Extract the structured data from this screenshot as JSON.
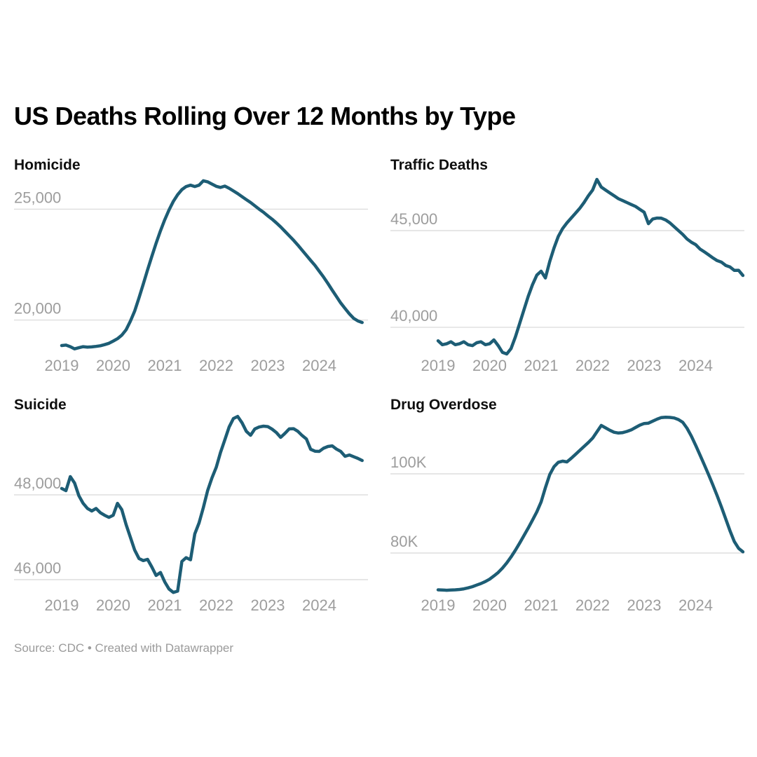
{
  "page": {
    "title": "US Deaths Rolling Over 12 Months by Type",
    "source_note": "Source: CDC • Created with Datawrapper",
    "background_color": "#ffffff",
    "line_color": "#1d5d75",
    "grid_color": "#dddddd",
    "axis_label_color": "#9d9d9d",
    "title_color": "#000000"
  },
  "chart_data": [
    {
      "type": "line",
      "title": "Homicide",
      "x_start_year": 2019,
      "points_per_year": 12,
      "x_tick_labels": [
        "2019",
        "2020",
        "2021",
        "2022",
        "2023",
        "2024"
      ],
      "y_gridlines": [
        {
          "value": 25000,
          "label": "25,000"
        },
        {
          "value": 20000,
          "label": "20,000"
        }
      ],
      "ylim": [
        18470,
        26560
      ],
      "grid": true,
      "legend": "none",
      "values": [
        18850,
        18870,
        18800,
        18700,
        18750,
        18800,
        18780,
        18790,
        18810,
        18840,
        18890,
        18950,
        19050,
        19160,
        19320,
        19560,
        19950,
        20400,
        21000,
        21620,
        22260,
        22870,
        23460,
        24020,
        24520,
        24960,
        25350,
        25650,
        25880,
        26020,
        26080,
        26020,
        26080,
        26280,
        26230,
        26130,
        26030,
        25980,
        26040,
        25940,
        25820,
        25700,
        25560,
        25430,
        25300,
        25150,
        25000,
        24860,
        24700,
        24550,
        24380,
        24200,
        24000,
        23800,
        23600,
        23380,
        23150,
        22920,
        22690,
        22460,
        22200,
        21940,
        21650,
        21350,
        21060,
        20770,
        20520,
        20280,
        20080,
        19960,
        19890
      ]
    },
    {
      "type": "line",
      "title": "Traffic Deaths",
      "x_start_year": 2019,
      "points_per_year": 12,
      "x_tick_labels": [
        "2019",
        "2020",
        "2021",
        "2022",
        "2023",
        "2024"
      ],
      "y_gridlines": [
        {
          "value": 45000,
          "label": "45,000"
        },
        {
          "value": 40000,
          "label": "40,000"
        }
      ],
      "ylim": [
        38620,
        47900
      ],
      "grid": true,
      "legend": "none",
      "values": [
        39300,
        39100,
        39150,
        39250,
        39100,
        39150,
        39250,
        39100,
        39050,
        39200,
        39250,
        39100,
        39150,
        39350,
        39050,
        38700,
        38620,
        38900,
        39500,
        40200,
        40900,
        41600,
        42200,
        42700,
        42900,
        42550,
        43400,
        44100,
        44700,
        45100,
        45400,
        45650,
        45900,
        46150,
        46450,
        46800,
        47100,
        47645,
        47250,
        47100,
        46950,
        46800,
        46650,
        46550,
        46450,
        46350,
        46250,
        46100,
        45950,
        45360,
        45600,
        45650,
        45640,
        45550,
        45400,
        45200,
        45000,
        44800,
        44565,
        44400,
        44275,
        44050,
        43900,
        43750,
        43590,
        43450,
        43370,
        43200,
        43120,
        42940,
        42950,
        42680
      ]
    },
    {
      "type": "line",
      "title": "Suicide",
      "x_start_year": 2019,
      "points_per_year": 12,
      "x_tick_labels": [
        "2019",
        "2020",
        "2021",
        "2022",
        "2023",
        "2024"
      ],
      "y_gridlines": [
        {
          "value": 48000,
          "label": "48,000"
        },
        {
          "value": 46000,
          "label": "46,000"
        }
      ],
      "ylim": [
        45670,
        49901
      ],
      "grid": true,
      "legend": "none",
      "values": [
        48150,
        48100,
        48430,
        48280,
        47980,
        47800,
        47680,
        47620,
        47680,
        47580,
        47520,
        47470,
        47520,
        47800,
        47650,
        47300,
        47000,
        46700,
        46500,
        46450,
        46480,
        46300,
        46100,
        46170,
        45950,
        45780,
        45700,
        45730,
        46430,
        46520,
        46470,
        47080,
        47340,
        47700,
        48100,
        48400,
        48650,
        49000,
        49300,
        49600,
        49800,
        49850,
        49700,
        49500,
        49405,
        49555,
        49600,
        49620,
        49610,
        49550,
        49470,
        49355,
        49450,
        49555,
        49560,
        49500,
        49400,
        49320,
        49075,
        49030,
        49025,
        49100,
        49140,
        49155,
        49080,
        49025,
        48910,
        48940,
        48900,
        48860,
        48810
      ]
    },
    {
      "type": "line",
      "title": "Drug Overdose",
      "x_start_year": 2019,
      "points_per_year": 12,
      "x_tick_labels": [
        "2019",
        "2020",
        "2021",
        "2022",
        "2023",
        "2024"
      ],
      "y_gridlines": [
        {
          "value": 100000,
          "label": "100K"
        },
        {
          "value": 80000,
          "label": "80K"
        }
      ],
      "ylim": [
        69730,
        115040
      ],
      "grid": true,
      "legend": "none",
      "values": [
        70700,
        70650,
        70600,
        70650,
        70700,
        70800,
        70950,
        71200,
        71500,
        71900,
        72300,
        72800,
        73400,
        74200,
        75100,
        76200,
        77500,
        79000,
        80700,
        82500,
        84400,
        86300,
        88300,
        90400,
        92900,
        96500,
        99800,
        101800,
        102900,
        103200,
        103000,
        103900,
        104900,
        105900,
        106900,
        107900,
        109000,
        110600,
        112200,
        111600,
        111000,
        110500,
        110300,
        110400,
        110700,
        111100,
        111700,
        112300,
        112700,
        112800,
        113300,
        113800,
        114200,
        114300,
        114250,
        114100,
        113700,
        113000,
        111500,
        109500,
        107200,
        104800,
        102300,
        99800,
        97200,
        94500,
        91600,
        88600,
        85600,
        82900,
        81200,
        80300
      ]
    }
  ]
}
